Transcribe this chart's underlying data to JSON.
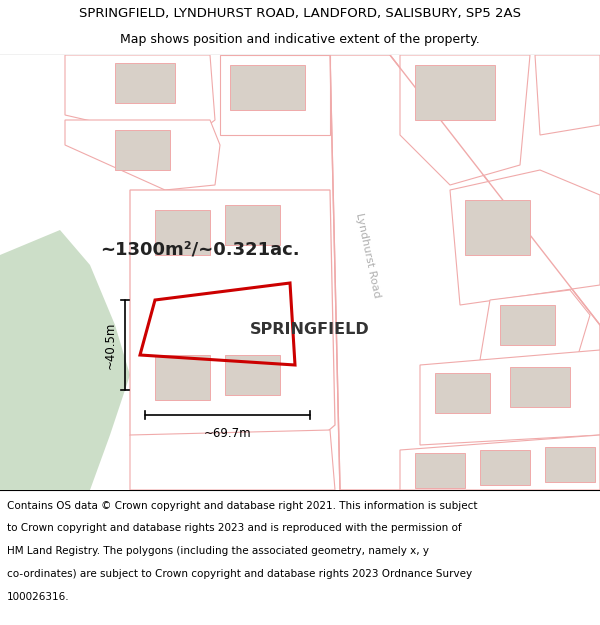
{
  "title_line1": "SPRINGFIELD, LYNDHURST ROAD, LANDFORD, SALISBURY, SP5 2AS",
  "title_line2": "Map shows position and indicative extent of the property.",
  "area_label": "~1300m²/~0.321ac.",
  "property_name": "SPRINGFIELD",
  "dim_width": "~69.7m",
  "dim_height": "~40.5m",
  "road_color": "#f0aaaa",
  "building_color": "#d8d0c8",
  "green_color": "#ccdec8",
  "red_color": "#cc0000",
  "road_label": "Lyndhurst Road",
  "title_fontsize": 9.5,
  "subtitle_fontsize": 9.0,
  "footer_fontsize": 7.5,
  "footer_lines": [
    "Contains OS data © Crown copyright and database right 2021. This information is subject",
    "to Crown copyright and database rights 2023 and is reproduced with the permission of",
    "HM Land Registry. The polygons (including the associated geometry, namely x, y",
    "co-ordinates) are subject to Crown copyright and database rights 2023 Ordnance Survey",
    "100026316."
  ]
}
